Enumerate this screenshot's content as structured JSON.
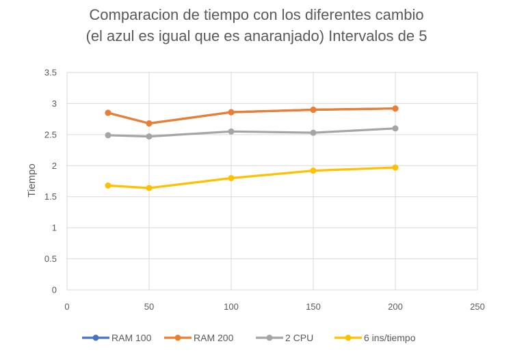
{
  "chart_data": {
    "type": "line",
    "title": [
      "Comparacion de tiempo con los diferentes cambio",
      "(el azul es igual que es anaranjado) Intervalos de 5"
    ],
    "xlabel": "",
    "ylabel": "Tiempo",
    "xlim": [
      0,
      250
    ],
    "ylim": [
      0,
      3.5
    ],
    "xticks": [
      0,
      50,
      100,
      150,
      200,
      250
    ],
    "yticks": [
      0,
      0.5,
      1,
      1.5,
      2,
      2.5,
      3,
      3.5
    ],
    "grid": true,
    "legend_position": "bottom",
    "x": [
      25,
      50,
      100,
      150,
      200
    ],
    "series": [
      {
        "name": "RAM 100",
        "color": "#4472C4",
        "values": [
          2.85,
          2.68,
          2.86,
          2.9,
          2.92
        ]
      },
      {
        "name": "RAM 200",
        "color": "#ED7D31",
        "values": [
          2.85,
          2.68,
          2.86,
          2.9,
          2.92
        ]
      },
      {
        "name": "2 CPU",
        "color": "#A5A5A5",
        "values": [
          2.49,
          2.47,
          2.55,
          2.53,
          2.6
        ]
      },
      {
        "name": "6 ins/tiempo",
        "color": "#FFC000",
        "values": [
          1.68,
          1.64,
          1.8,
          1.92,
          1.97
        ]
      }
    ]
  }
}
